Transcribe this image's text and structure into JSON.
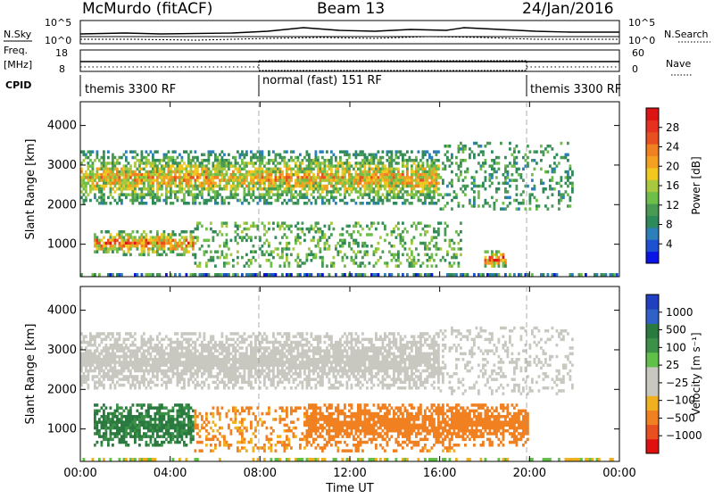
{
  "header": {
    "station": "McMurdo (fitACF)",
    "beam": "Beam 13",
    "date": "24/Jan/2016"
  },
  "summary": {
    "nsky_label": "N.Sky",
    "nsky_ticks": [
      "10^5",
      "10^0"
    ],
    "nsearch_label": "N.Search",
    "nsearch_ticks": [
      "10^5",
      "10^0"
    ],
    "freq_label_1": "Freq.",
    "freq_label_2": "[MHz]",
    "freq_ticks": [
      "18",
      "8"
    ],
    "nave_label": "Nave",
    "nave_ticks": [
      "60",
      "0"
    ],
    "cpid_label": "CPID",
    "cpid_segments": [
      {
        "label": "themis 3300 RF",
        "start_h": 0,
        "end_h": 8
      },
      {
        "label": "normal (fast) 151 RF",
        "start_h": 8,
        "end_h": 20
      },
      {
        "label": "themis 3300 RF",
        "start_h": 20,
        "end_h": 24
      }
    ]
  },
  "chart_data": [
    {
      "type": "heatmap",
      "xlabel": "",
      "ylabel": "Slant Range [km]",
      "x_range_hours": [
        0,
        24
      ],
      "ylim": [
        180,
        4600
      ],
      "yticks": [
        1000,
        2000,
        3000,
        4000
      ],
      "colorbar": {
        "label": "Power [dB]",
        "range": [
          0,
          32
        ],
        "ticks": [
          4,
          8,
          12,
          16,
          20,
          24,
          28
        ],
        "colors": [
          "#0a14e6",
          "#1e50d2",
          "#2c7fb8",
          "#2e8a5a",
          "#4a9a55",
          "#6fbe4a",
          "#a8c840",
          "#f0c820",
          "#f4a020",
          "#f08020",
          "#e85020",
          "#e63020",
          "#dc1414"
        ]
      },
      "features": [
        {
          "region": "E-region band",
          "range_km": [
            700,
            1400
          ],
          "hours": [
            0.5,
            5
          ],
          "peak_db": 28
        },
        {
          "region": "F-region band",
          "range_km": [
            2000,
            3400
          ],
          "hours": [
            0,
            16
          ],
          "peak_db": 24
        },
        {
          "region": "Strong echo",
          "range_km": [
            400,
            900
          ],
          "hours": [
            18,
            19
          ],
          "peak_db": 30
        }
      ]
    },
    {
      "type": "heatmap",
      "xlabel": "Time UT",
      "ylabel": "Slant Range [km]",
      "x_range_hours": [
        0,
        24
      ],
      "xticks": [
        "00:00",
        "04:00",
        "08:00",
        "12:00",
        "16:00",
        "20:00",
        "00:00"
      ],
      "ylim": [
        180,
        4600
      ],
      "yticks": [
        1000,
        2000,
        3000,
        4000
      ],
      "colorbar": {
        "label": "Velocity [m s⁻¹]",
        "ticks": [
          "1000",
          "500",
          "100",
          "25",
          "−25",
          "−100",
          "−500",
          "−1000"
        ],
        "colors": [
          "#2040c0",
          "#3060c8",
          "#2a7a40",
          "#3c9048",
          "#60c048",
          "#c8c8c0",
          "#c8c8c0",
          "#f0b020",
          "#f08020",
          "#e85020",
          "#e01010"
        ]
      },
      "features": [
        {
          "region": "Positive flow",
          "range_km": [
            600,
            1700
          ],
          "hours": [
            0.5,
            5
          ],
          "velocity": 300
        },
        {
          "region": "Near zero (ground scatter)",
          "range_km": [
            2000,
            3500
          ],
          "hours": [
            0,
            16
          ],
          "velocity": 0
        },
        {
          "region": "Negative flow",
          "range_km": [
            600,
            1700
          ],
          "hours": [
            10,
            20
          ],
          "velocity": -300
        }
      ]
    }
  ]
}
